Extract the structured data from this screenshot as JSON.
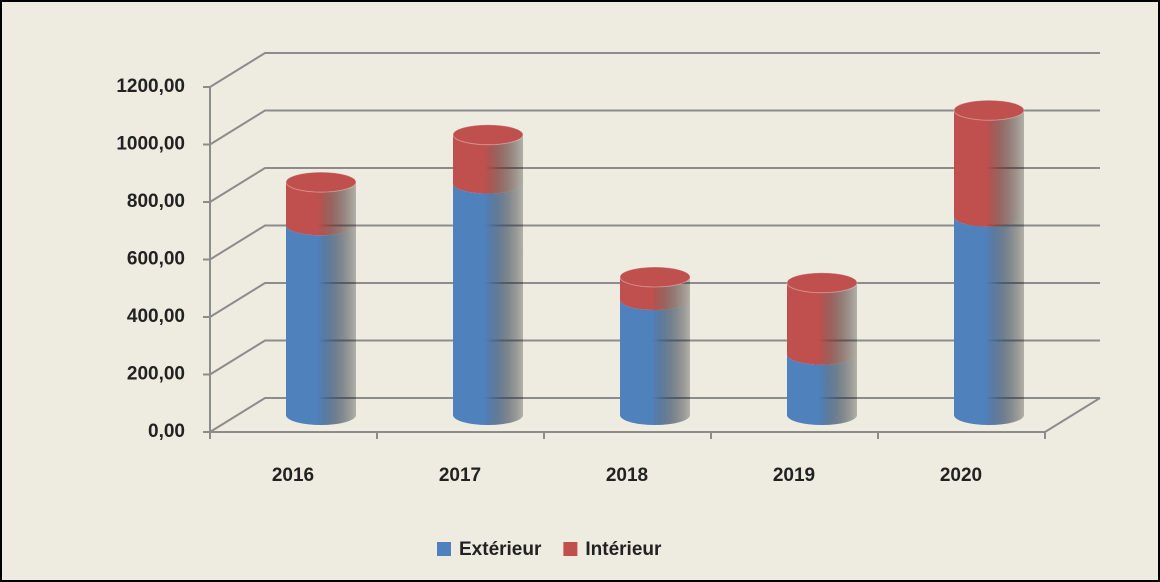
{
  "chart_data": {
    "type": "bar",
    "stacked": true,
    "shape": "cylinder",
    "categories": [
      "2016",
      "2017",
      "2018",
      "2019",
      "2020"
    ],
    "series": [
      {
        "name": "Extérieur",
        "color": "#4f81bd",
        "values": [
          660,
          805,
          400,
          210,
          690
        ]
      },
      {
        "name": "Intérieur",
        "color": "#c0504d",
        "values": [
          150,
          170,
          80,
          250,
          370
        ]
      }
    ],
    "ylim": [
      0,
      1200
    ],
    "yticks": [
      {
        "value": 0,
        "label": "0,00"
      },
      {
        "value": 200,
        "label": "200,00"
      },
      {
        "value": 400,
        "label": "400,00"
      },
      {
        "value": 600,
        "label": "600,00"
      },
      {
        "value": 800,
        "label": "800,00"
      },
      {
        "value": 1000,
        "label": "1000,00"
      },
      {
        "value": 1200,
        "label": "1200,00"
      }
    ],
    "grid": true,
    "legend": "bottom"
  }
}
